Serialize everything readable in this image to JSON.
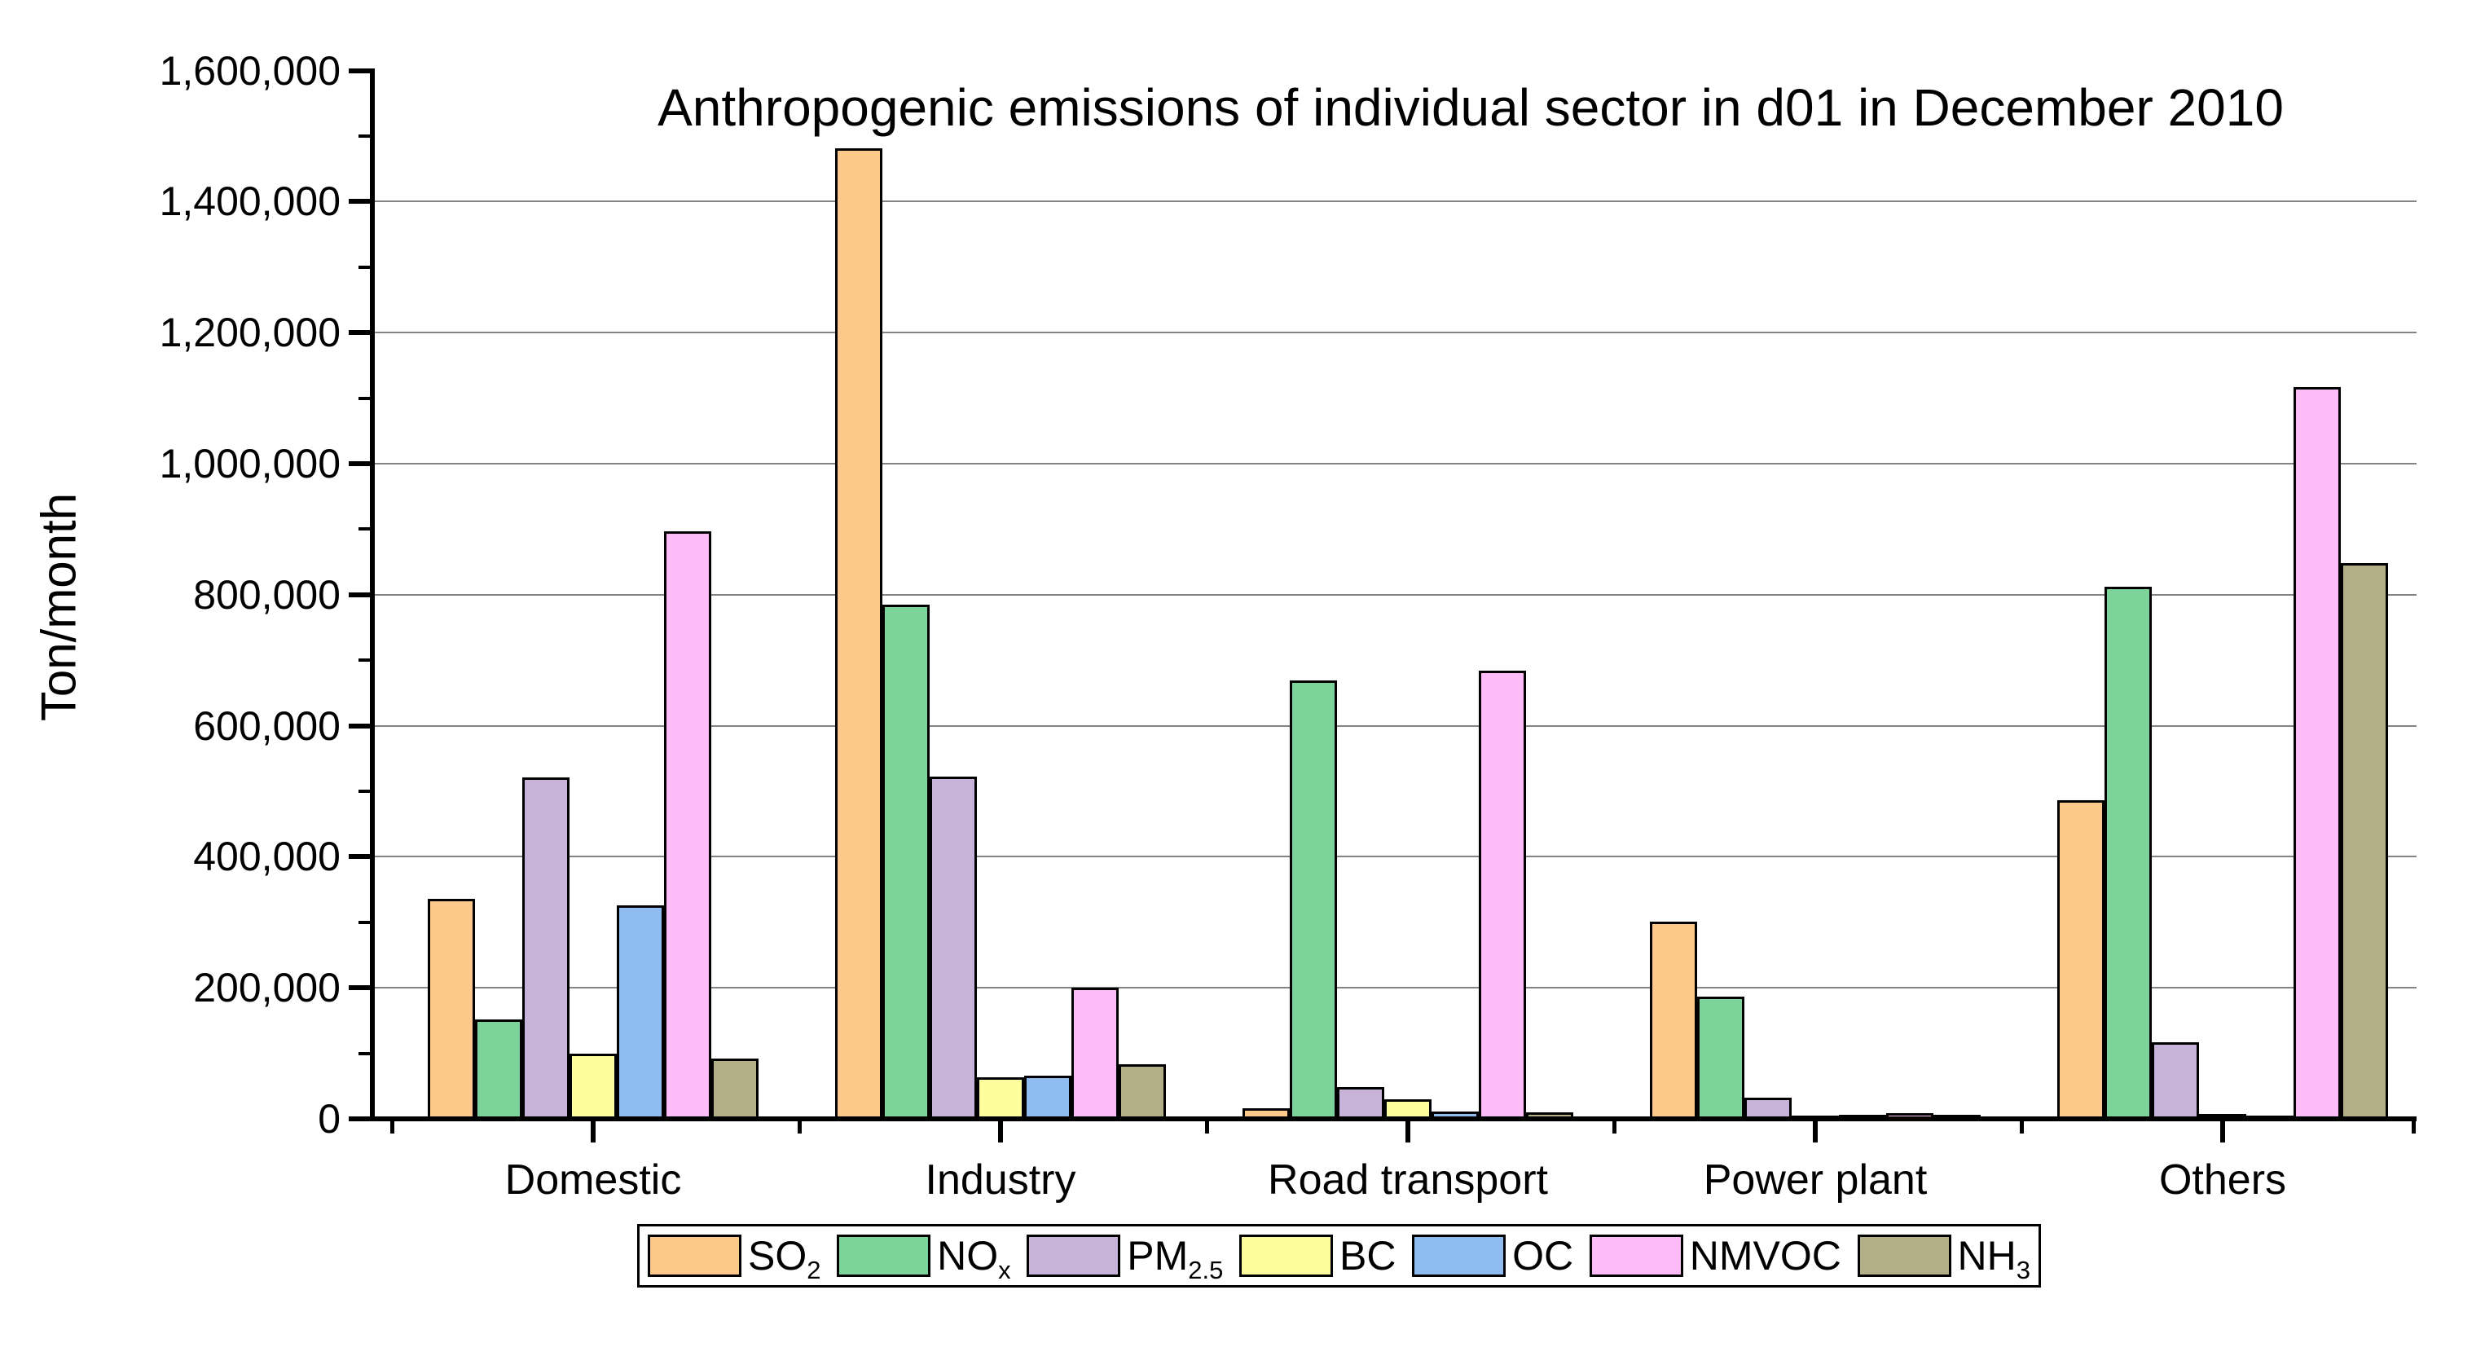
{
  "chart_data": {
    "type": "bar",
    "title": "Anthropogenic emissions of individual sector in d01 in December 2010",
    "xlabel": "",
    "ylabel": "Ton/month",
    "ylim": [
      0,
      1600000
    ],
    "y_major_step": 200000,
    "y_minor_step": 100000,
    "grid": "horizontal gray gridlines at major ticks (200,000 to 1,400,000)",
    "legend_position": "bottom center, boxed single row",
    "y_tick_labels": [
      "0",
      "200,000",
      "400,000",
      "600,000",
      "800,000",
      "1,000,000",
      "1,200,000",
      "1,400,000",
      "1,600,000"
    ],
    "categories": [
      "Domestic",
      "Industry",
      "Road transport",
      "Power plant",
      "Others"
    ],
    "series": [
      {
        "name": "SO2",
        "label_main": "SO",
        "label_sub": "2",
        "color": "#FCC98B",
        "values": [
          332000,
          1477000,
          13000,
          297000,
          483000
        ]
      },
      {
        "name": "NOx",
        "label_main": "NO",
        "label_sub": "x",
        "color": "#7DD49A",
        "values": [
          148000,
          781000,
          665000,
          183000,
          808000
        ]
      },
      {
        "name": "PM2.5",
        "label_main": "PM",
        "label_sub": "2.5",
        "color": "#C7B2D8",
        "values": [
          517000,
          519000,
          45000,
          29000,
          113000
        ]
      },
      {
        "name": "BC",
        "label_main": "BC",
        "label_sub": "",
        "color": "#FDFD9D",
        "values": [
          96000,
          60000,
          26000,
          1000,
          4000
        ]
      },
      {
        "name": "OC",
        "label_main": "OC",
        "label_sub": "",
        "color": "#8EBBF0",
        "values": [
          322000,
          62000,
          8000,
          2000,
          1000
        ]
      },
      {
        "name": "NMVOC",
        "label_main": "NMVOC",
        "label_sub": "",
        "color": "#FDBCF8",
        "values": [
          893000,
          196000,
          680000,
          5000,
          1113000
        ]
      },
      {
        "name": "NH3",
        "label_main": "NH",
        "label_sub": "3",
        "color": "#B2AE85",
        "values": [
          88000,
          80000,
          6000,
          3000,
          845000
        ]
      }
    ],
    "axis_color": "#000000",
    "gridline_color": "#848484",
    "background_color": "#FFFFFF"
  }
}
